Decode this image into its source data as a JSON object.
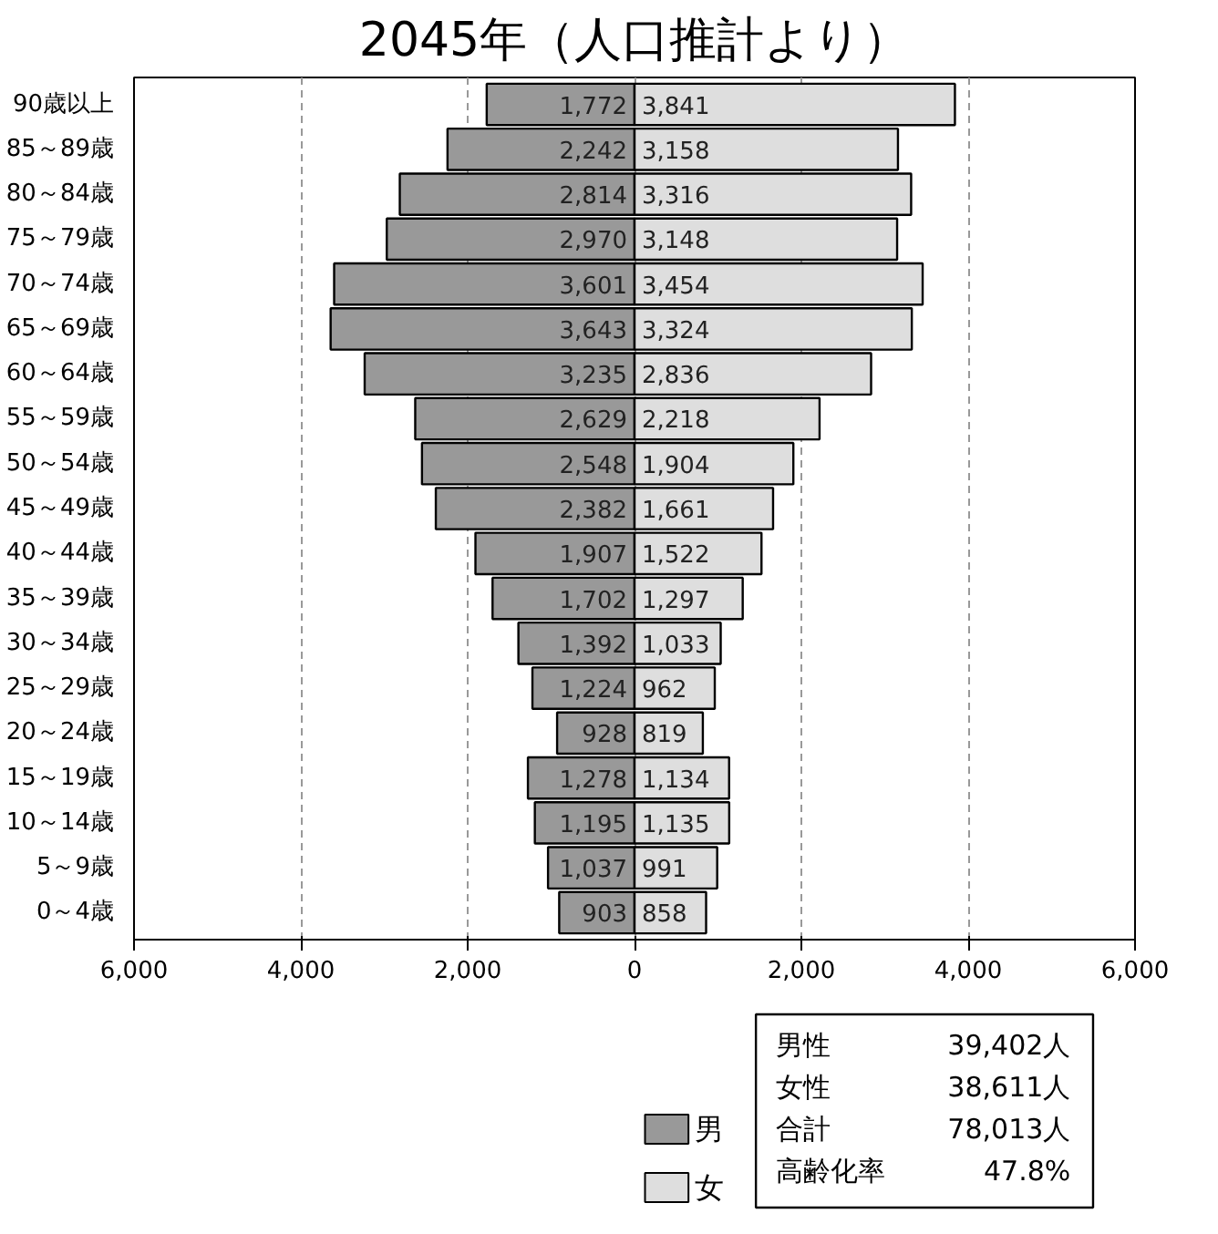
{
  "chart_data": {
    "type": "bar",
    "orientation": "horizontal",
    "title": "2045年（人口推計より）",
    "categories": [
      "90歳以上",
      "85～89歳",
      "80～84歳",
      "75～79歳",
      "70～74歳",
      "65～69歳",
      "60～64歳",
      "55～59歳",
      "50～54歳",
      "45～49歳",
      "40～44歳",
      "35～39歳",
      "30～34歳",
      "25～29歳",
      "20～24歳",
      "15～19歳",
      "10～14歳",
      "5～9歳",
      "0～4歳"
    ],
    "series": [
      {
        "name": "男",
        "color": "#999999",
        "values": [
          1772,
          2242,
          2814,
          2970,
          3601,
          3643,
          3235,
          2629,
          2548,
          2382,
          1907,
          1702,
          1392,
          1224,
          928,
          1278,
          1195,
          1037,
          903
        ],
        "value_labels": [
          "1,772",
          "2,242",
          "2,814",
          "2,970",
          "3,601",
          "3,643",
          "3,235",
          "2,629",
          "2,548",
          "2,382",
          "1,907",
          "1,702",
          "1,392",
          "1,224",
          "928",
          "1,278",
          "1,195",
          "1,037",
          "903"
        ],
        "base": [
          -1772,
          -2242,
          -2814,
          -2970,
          -3601,
          -3643,
          -3235,
          -2629,
          -2548,
          -2382,
          -1907,
          -1702,
          -1392,
          -1224,
          -928,
          -1278,
          -1195,
          -1037,
          -903
        ]
      },
      {
        "name": "女",
        "color": "#dedede",
        "values": [
          3841,
          3158,
          3316,
          3148,
          3454,
          3324,
          2836,
          2218,
          1904,
          1661,
          1522,
          1297,
          1033,
          962,
          819,
          1134,
          1135,
          991,
          858
        ],
        "value_labels": [
          "3,841",
          "3,158",
          "3,316",
          "3,148",
          "3,454",
          "3,324",
          "2,836",
          "2,218",
          "1,904",
          "1,661",
          "1,522",
          "1,297",
          "1,033",
          "962",
          "819",
          "1,134",
          "1,135",
          "991",
          "858"
        ]
      }
    ],
    "xlim": [
      -6000,
      6000
    ],
    "xticks": [
      {
        "value": -6000,
        "label": "6,000"
      },
      {
        "value": -4000,
        "label": "4,000"
      },
      {
        "value": -2000,
        "label": "2,000"
      },
      0,
      {
        "value": 2000,
        "label": "2,000"
      },
      {
        "value": 4000,
        "label": "4,000"
      },
      {
        "value": 6000,
        "label": "6,000"
      }
    ],
    "grid": "x",
    "line_style": "dashed",
    "legend": "bottom",
    "annotations": [
      "男性",
      "39,402人",
      "女性",
      "38,611人",
      "合計",
      "78,013人",
      "高齢化率",
      "47.8%"
    ]
  }
}
